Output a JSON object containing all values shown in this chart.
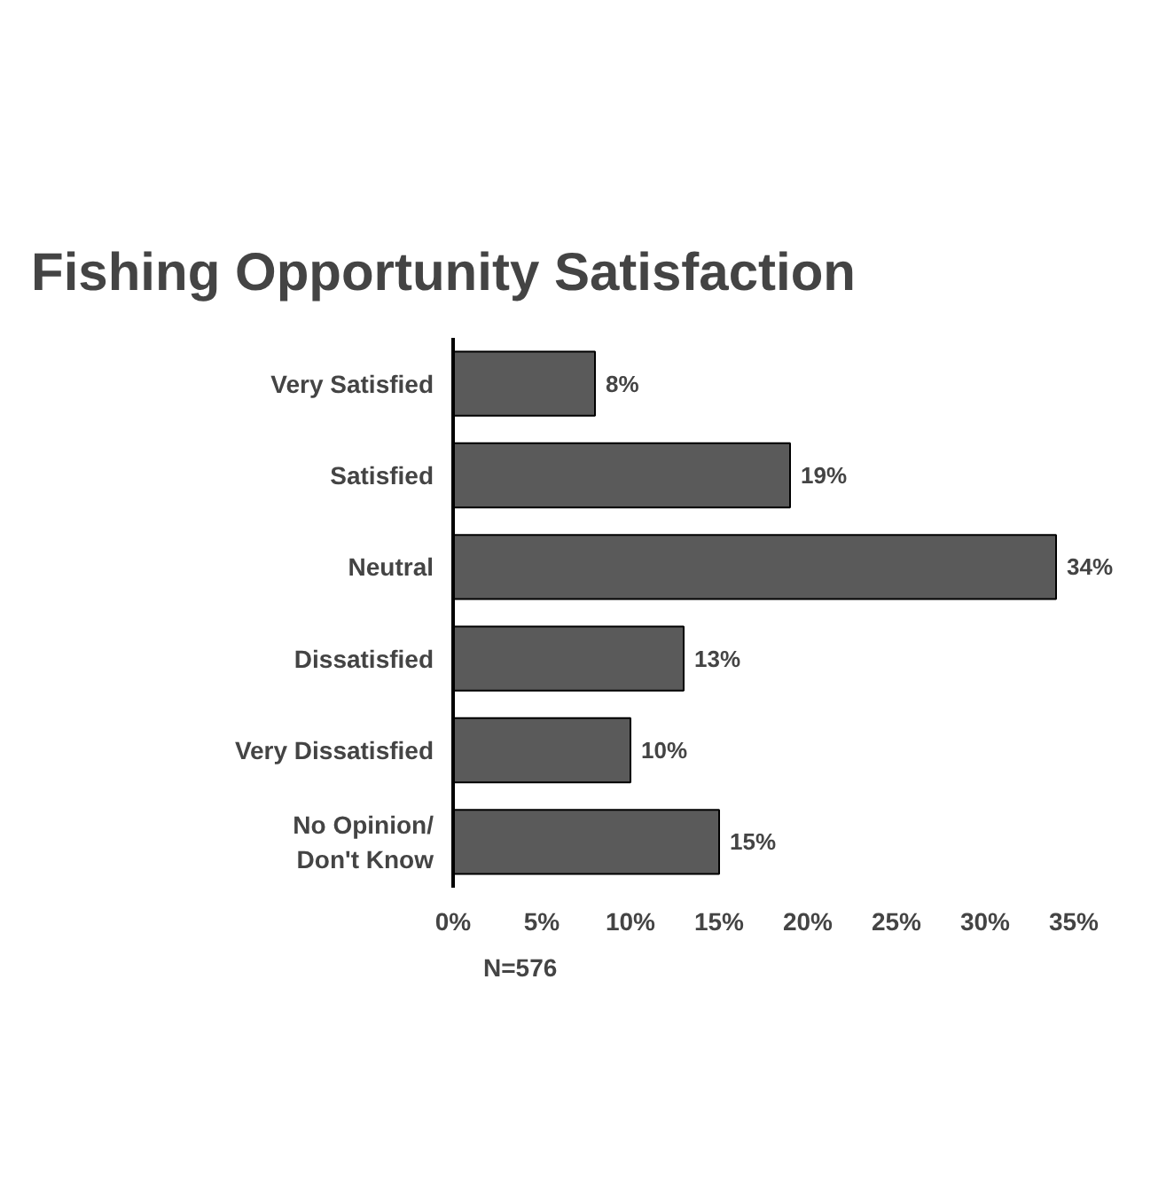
{
  "chart_data": {
    "type": "bar",
    "orientation": "horizontal",
    "title": "Fishing Opportunity Satisfaction",
    "categories": [
      "Very Satisfied",
      "Satisfied",
      "Neutral",
      "Dissatisfied",
      "Very Dissatisfied",
      "No Opinion/\nDon't Know"
    ],
    "values": [
      8,
      19,
      34,
      13,
      10,
      15
    ],
    "value_labels": [
      "8%",
      "19%",
      "34%",
      "13%",
      "10%",
      "15%"
    ],
    "color": "#5a5a5a",
    "xlim": [
      0,
      35
    ],
    "xticks": [
      {
        "value": 0,
        "label": "0%"
      },
      {
        "value": 5,
        "label": "5%"
      },
      {
        "value": 10,
        "label": "10%"
      },
      {
        "value": 15,
        "label": "15%"
      },
      {
        "value": 20,
        "label": "20%"
      },
      {
        "value": 25,
        "label": "25%"
      },
      {
        "value": 30,
        "label": "30%"
      },
      {
        "value": 35,
        "label": "35%"
      }
    ],
    "grid": false,
    "annotations": [
      "N=576"
    ]
  }
}
